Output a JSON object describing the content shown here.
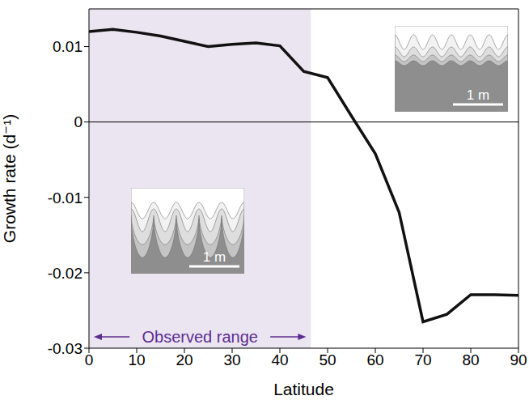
{
  "chart_data": {
    "type": "line",
    "x_label": "Latitude",
    "y_label": "Growth rate (d⁻¹)",
    "x": [
      0,
      5,
      10,
      15,
      20,
      25,
      30,
      35,
      40,
      45,
      50,
      55,
      60,
      65,
      70,
      75,
      80,
      85,
      90
    ],
    "values": [
      0.012,
      0.0123,
      0.0119,
      0.0114,
      0.0107,
      0.01,
      0.0103,
      0.0105,
      0.0101,
      0.0067,
      0.0059,
      0.0008,
      -0.0042,
      -0.012,
      -0.0265,
      -0.0255,
      -0.0229,
      -0.0229,
      -0.023
    ],
    "color": "#111111",
    "xlim": [
      0,
      90
    ],
    "xticks": [
      0,
      10,
      20,
      30,
      40,
      50,
      60,
      70,
      80,
      90
    ],
    "ylim": [
      -0.03,
      0.015
    ],
    "yticks": [
      -0.03,
      -0.02,
      -0.01,
      0,
      0.01
    ],
    "zero_line": 0,
    "shaded_range": [
      0,
      46.5
    ],
    "shaded_label": "Observed range",
    "inset_scale_label": "1 m"
  }
}
